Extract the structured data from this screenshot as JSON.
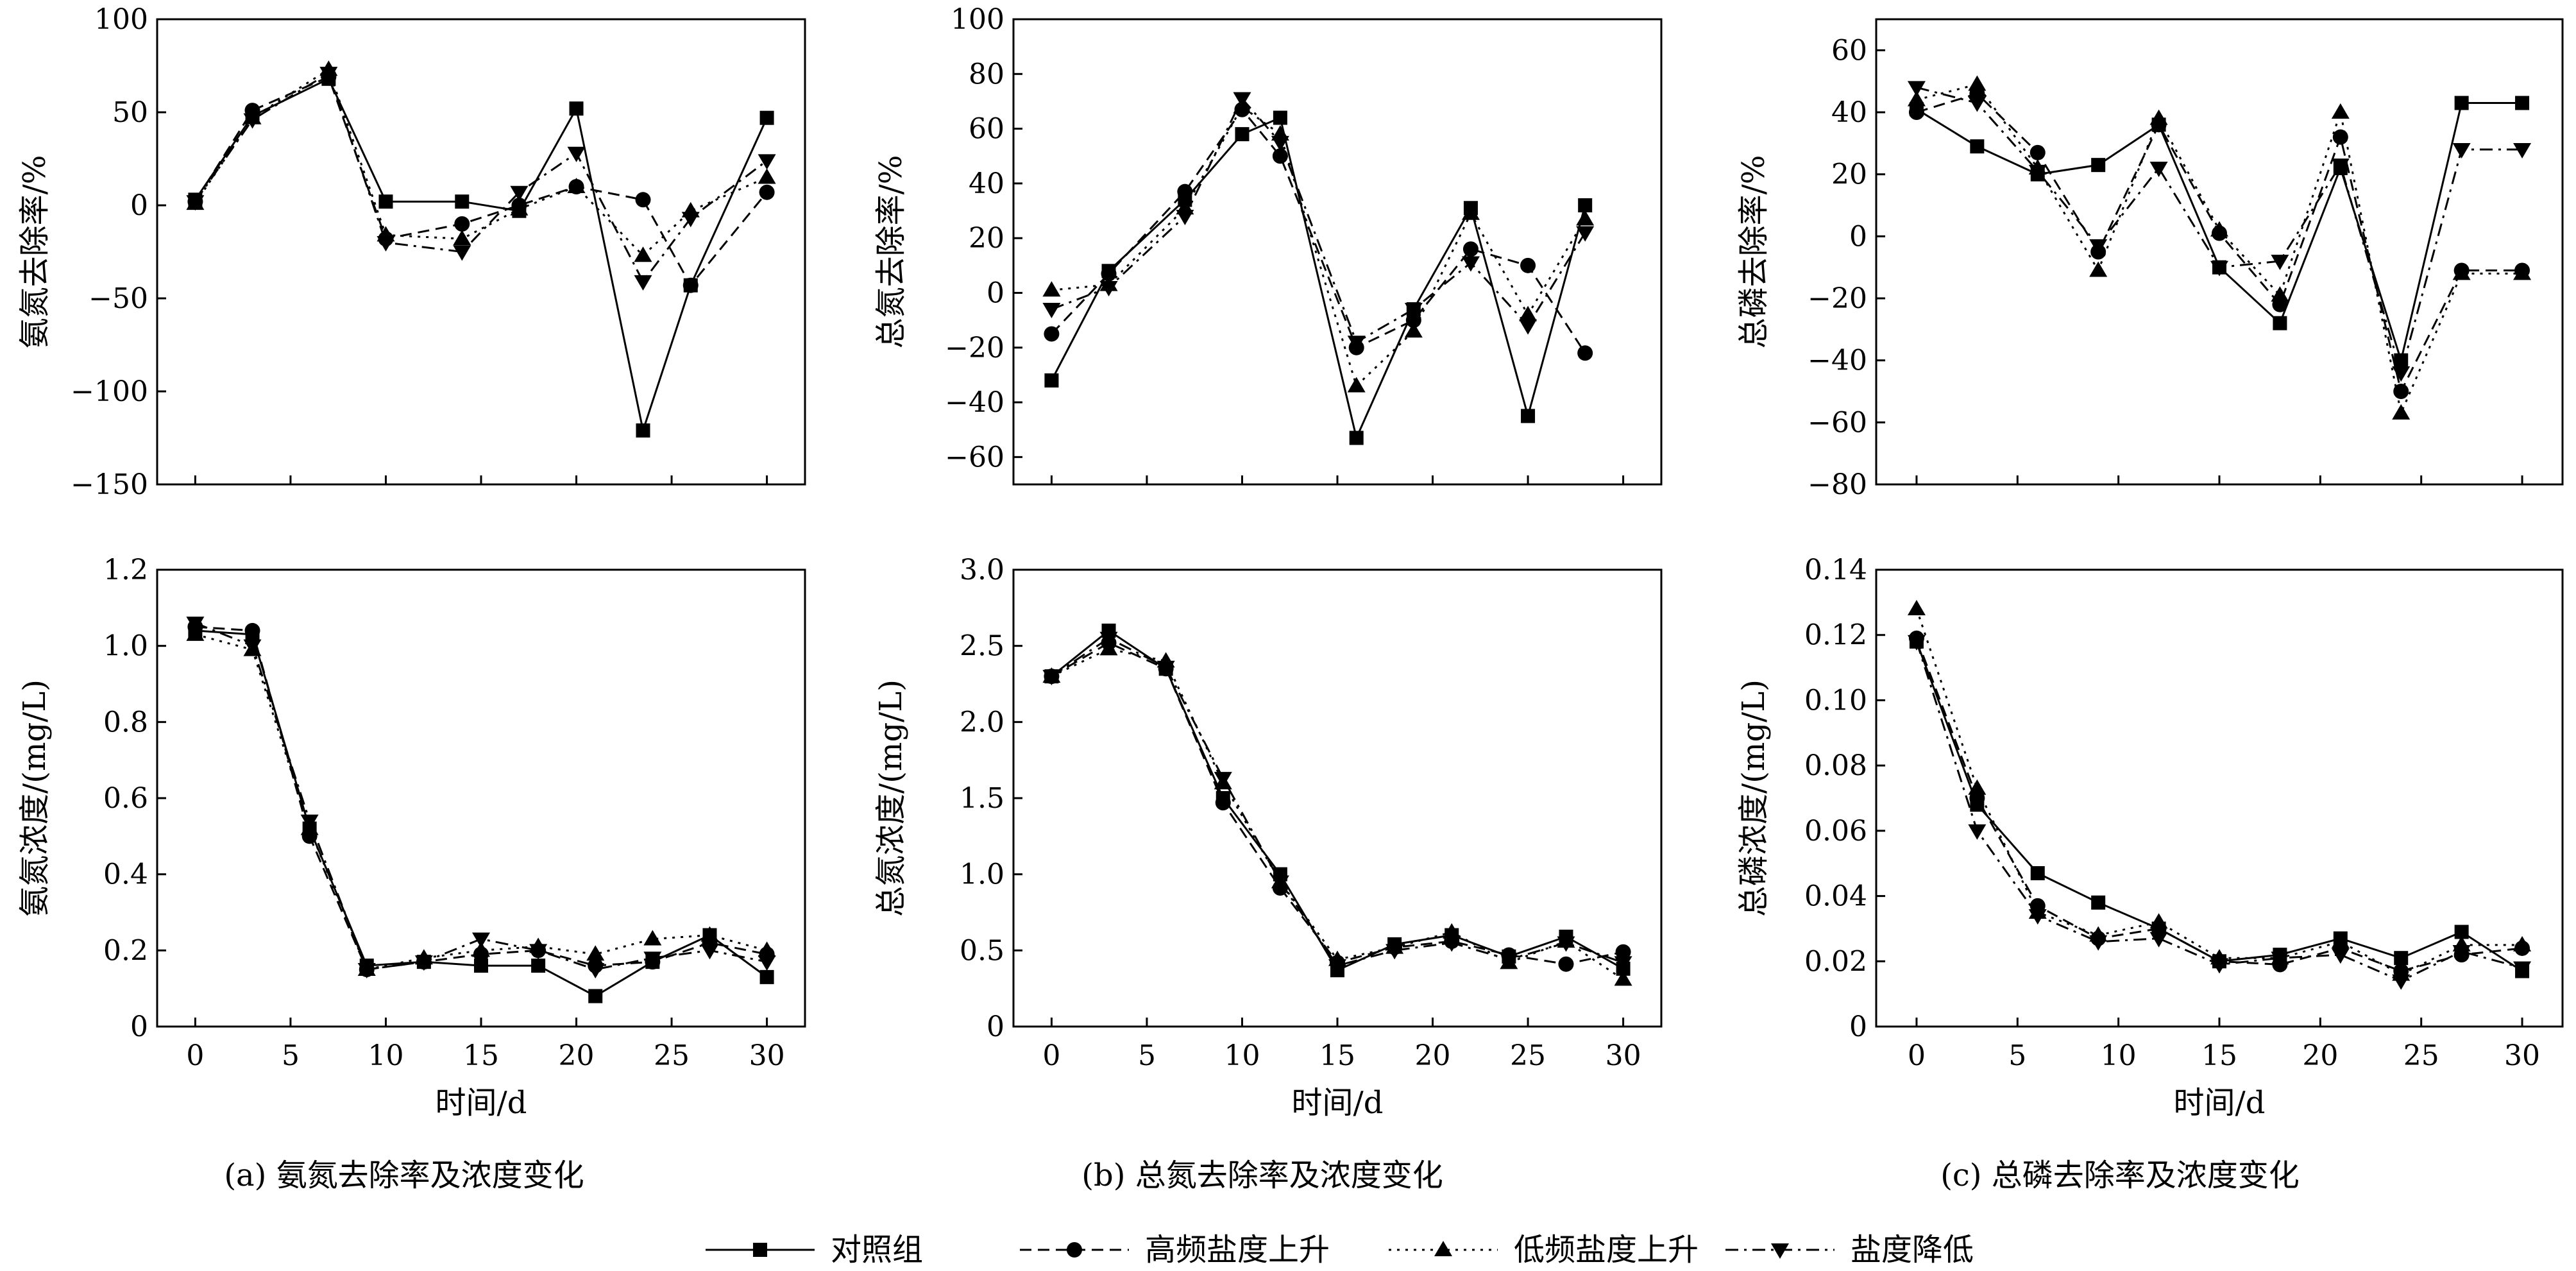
{
  "chart_data": [
    {
      "id": "a-top",
      "type": "line",
      "ylabel": "氨氮去除率/%",
      "xlim": [
        -2,
        32
      ],
      "ylim": [
        -150,
        100
      ],
      "xticks": [
        "0",
        "5",
        "10",
        "15",
        "20",
        "25",
        "30"
      ],
      "yticks": [
        "−150",
        "−100",
        "−50",
        "0",
        "50",
        "100"
      ],
      "show_xticklabels": false,
      "series": [
        {
          "name": "对照组",
          "x": [
            0,
            3,
            7,
            10,
            14,
            17,
            20,
            23.5,
            26,
            30
          ],
          "y": [
            3,
            48,
            68,
            2,
            2,
            -3,
            52,
            -121,
            -43,
            47
          ]
        },
        {
          "name": "高频盐度上升",
          "x": [
            0,
            3,
            7,
            10,
            14,
            17,
            20,
            23.5,
            26,
            30
          ],
          "y": [
            2,
            51,
            69,
            -18,
            -10,
            0,
            10,
            3,
            -43,
            7
          ]
        },
        {
          "name": "低频盐度上升",
          "x": [
            0,
            3,
            7,
            10,
            14,
            17,
            20,
            23.5,
            26,
            30
          ],
          "y": [
            1,
            47,
            73,
            -16,
            -18,
            -2,
            10,
            -27,
            -3,
            15
          ]
        },
        {
          "name": "盐度降低",
          "x": [
            0,
            3,
            7,
            10,
            14,
            17,
            20,
            23.5,
            26,
            30
          ],
          "y": [
            2,
            46,
            71,
            -20,
            -25,
            7,
            28,
            -41,
            -7,
            24
          ]
        }
      ]
    },
    {
      "id": "b-top",
      "type": "line",
      "ylabel": "总氮去除率/%",
      "xlim": [
        -2,
        32
      ],
      "ylim": [
        -70,
        100
      ],
      "xticks": [
        "0",
        "5",
        "10",
        "15",
        "20",
        "25",
        "30"
      ],
      "yticks": [
        "−60",
        "−40",
        "−20",
        "0",
        "20",
        "40",
        "60",
        "80",
        "100"
      ],
      "show_xticklabels": false,
      "series": [
        {
          "name": "对照组",
          "x": [
            0,
            3,
            7,
            10,
            12,
            16,
            19,
            22,
            25,
            28
          ],
          "y": [
            -32,
            8,
            34,
            58,
            64,
            -53,
            -6,
            31,
            -45,
            32
          ]
        },
        {
          "name": "高频盐度上升",
          "x": [
            0,
            3,
            7,
            10,
            12,
            16,
            19,
            22,
            25,
            28
          ],
          "y": [
            -15,
            7,
            37,
            67,
            50,
            -20,
            -10,
            16,
            10,
            -22
          ]
        },
        {
          "name": "低频盐度上升",
          "x": [
            0,
            3,
            7,
            10,
            12,
            16,
            19,
            22,
            25,
            28
          ],
          "y": [
            1,
            3,
            31,
            68,
            58,
            -34,
            -14,
            29,
            -8,
            27
          ]
        },
        {
          "name": "盐度降低",
          "x": [
            0,
            3,
            7,
            10,
            12,
            16,
            19,
            22,
            25,
            28
          ],
          "y": [
            -6,
            2,
            28,
            71,
            55,
            -18,
            -6,
            11,
            -12,
            22
          ]
        }
      ]
    },
    {
      "id": "c-top",
      "type": "line",
      "ylabel": "总磷去除率/%",
      "xlim": [
        -2,
        32
      ],
      "ylim": [
        -80,
        70
      ],
      "xticks": [
        "0",
        "5",
        "10",
        "15",
        "20",
        "25",
        "30"
      ],
      "yticks": [
        "−80",
        "−60",
        "−40",
        "−20",
        "0",
        "20",
        "40",
        "60"
      ],
      "show_xticklabels": false,
      "series": [
        {
          "name": "对照组",
          "x": [
            0,
            3,
            6,
            9,
            12,
            15,
            18,
            21,
            24,
            27,
            30
          ],
          "y": [
            41,
            29,
            20,
            23,
            36,
            -10,
            -28,
            22,
            -40,
            43,
            43
          ]
        },
        {
          "name": "高频盐度上升",
          "x": [
            0,
            3,
            6,
            9,
            12,
            15,
            18,
            21,
            24,
            27,
            30
          ],
          "y": [
            40,
            46,
            27,
            -5,
            36,
            1,
            -22,
            32,
            -50,
            -11,
            -11
          ]
        },
        {
          "name": "低频盐度上升",
          "x": [
            0,
            3,
            6,
            9,
            12,
            15,
            18,
            21,
            24,
            27,
            30
          ],
          "y": [
            44,
            49,
            22,
            -11,
            38,
            2,
            -19,
            40,
            -57,
            -12,
            -12
          ]
        },
        {
          "name": "盐度降低",
          "x": [
            0,
            3,
            6,
            9,
            12,
            15,
            18,
            21,
            24,
            27,
            30
          ],
          "y": [
            48,
            43,
            21,
            -3,
            22,
            -10,
            -8,
            23,
            -44,
            28,
            28
          ]
        }
      ]
    },
    {
      "id": "a-bottom",
      "type": "line",
      "ylabel": "氨氮浓度/(mg/L)",
      "xlabel": "时间/d",
      "xlim": [
        -2,
        32
      ],
      "ylim": [
        0,
        1.2
      ],
      "xticks": [
        "0",
        "5",
        "10",
        "15",
        "20",
        "25",
        "30"
      ],
      "yticks": [
        "0",
        "0.2",
        "0.4",
        "0.6",
        "0.8",
        "1.0",
        "1.2"
      ],
      "show_xticklabels": true,
      "series": [
        {
          "name": "对照组",
          "x": [
            0,
            3,
            6,
            9,
            12,
            15,
            18,
            21,
            24,
            27,
            30
          ],
          "y": [
            1.04,
            1.03,
            0.52,
            0.16,
            0.17,
            0.16,
            0.16,
            0.08,
            0.17,
            0.24,
            0.13
          ]
        },
        {
          "name": "高频盐度上升",
          "x": [
            0,
            3,
            6,
            9,
            12,
            15,
            18,
            21,
            24,
            27,
            30
          ],
          "y": [
            1.05,
            1.04,
            0.5,
            0.15,
            0.17,
            0.19,
            0.2,
            0.16,
            0.17,
            0.22,
            0.19
          ]
        },
        {
          "name": "低频盐度上升",
          "x": [
            0,
            3,
            6,
            9,
            12,
            15,
            18,
            21,
            24,
            27,
            30
          ],
          "y": [
            1.03,
            0.99,
            0.52,
            0.15,
            0.18,
            0.2,
            0.21,
            0.19,
            0.23,
            0.24,
            0.2
          ]
        },
        {
          "name": "盐度降低",
          "x": [
            0,
            3,
            6,
            9,
            12,
            15,
            18,
            21,
            24,
            27,
            30
          ],
          "y": [
            1.06,
            1.0,
            0.54,
            0.15,
            0.17,
            0.23,
            0.2,
            0.15,
            0.18,
            0.2,
            0.17
          ]
        }
      ]
    },
    {
      "id": "b-bottom",
      "type": "line",
      "ylabel": "总氮浓度/(mg/L)",
      "xlabel": "时间/d",
      "xlim": [
        -2,
        32
      ],
      "ylim": [
        0,
        3.0
      ],
      "xticks": [
        "0",
        "5",
        "10",
        "15",
        "20",
        "25",
        "30"
      ],
      "yticks": [
        "0",
        "0.5",
        "1.0",
        "1.5",
        "2.0",
        "2.5",
        "3.0"
      ],
      "show_xticklabels": true,
      "series": [
        {
          "name": "对照组",
          "x": [
            0,
            3,
            6,
            9,
            12,
            15,
            18,
            21,
            24,
            27,
            30
          ],
          "y": [
            2.3,
            2.6,
            2.35,
            1.5,
            1.0,
            0.37,
            0.54,
            0.6,
            0.46,
            0.59,
            0.38
          ]
        },
        {
          "name": "高频盐度上升",
          "x": [
            0,
            3,
            6,
            9,
            12,
            15,
            18,
            21,
            24,
            27,
            30
          ],
          "y": [
            2.3,
            2.52,
            2.35,
            1.47,
            0.91,
            0.42,
            0.52,
            0.56,
            0.47,
            0.41,
            0.49
          ]
        },
        {
          "name": "低频盐度上升",
          "x": [
            0,
            3,
            6,
            9,
            12,
            15,
            18,
            21,
            24,
            27,
            30
          ],
          "y": [
            2.3,
            2.48,
            2.4,
            1.6,
            0.95,
            0.44,
            0.52,
            0.62,
            0.42,
            0.56,
            0.31
          ]
        },
        {
          "name": "盐度降低",
          "x": [
            0,
            3,
            6,
            9,
            12,
            15,
            18,
            21,
            24,
            27,
            30
          ],
          "y": [
            2.3,
            2.55,
            2.36,
            1.63,
            0.95,
            0.4,
            0.5,
            0.55,
            0.44,
            0.55,
            0.42
          ]
        }
      ]
    },
    {
      "id": "c-bottom",
      "type": "line",
      "ylabel": "总磷浓度/(mg/L)",
      "xlabel": "时间/d",
      "xlim": [
        -2,
        32
      ],
      "ylim": [
        0,
        0.14
      ],
      "xticks": [
        "0",
        "5",
        "10",
        "15",
        "20",
        "25",
        "30"
      ],
      "yticks": [
        "0",
        "0.02",
        "0.04",
        "0.06",
        "0.08",
        "0.10",
        "0.12",
        "0.14"
      ],
      "show_xticklabels": true,
      "series": [
        {
          "name": "对照组",
          "x": [
            0,
            3,
            6,
            9,
            12,
            15,
            18,
            21,
            24,
            27,
            30
          ],
          "y": [
            0.118,
            0.068,
            0.047,
            0.038,
            0.03,
            0.02,
            0.022,
            0.027,
            0.021,
            0.029,
            0.017
          ]
        },
        {
          "name": "高频盐度上升",
          "x": [
            0,
            3,
            6,
            9,
            12,
            15,
            18,
            21,
            24,
            27,
            30
          ],
          "y": [
            0.119,
            0.07,
            0.037,
            0.027,
            0.03,
            0.02,
            0.019,
            0.024,
            0.017,
            0.022,
            0.024
          ]
        },
        {
          "name": "低频盐度上升",
          "x": [
            0,
            3,
            6,
            9,
            12,
            15,
            18,
            21,
            24,
            27,
            30
          ],
          "y": [
            0.128,
            0.073,
            0.035,
            0.028,
            0.032,
            0.021,
            0.021,
            0.026,
            0.016,
            0.025,
            0.025
          ]
        },
        {
          "name": "盐度降低",
          "x": [
            0,
            3,
            6,
            9,
            12,
            15,
            18,
            21,
            24,
            27,
            30
          ],
          "y": [
            0.118,
            0.06,
            0.034,
            0.026,
            0.027,
            0.019,
            0.021,
            0.022,
            0.014,
            0.023,
            0.018
          ]
        }
      ]
    }
  ],
  "captions": [
    "(a) 氨氮去除率及浓度变化",
    "(b) 总氮去除率及浓度变化",
    "(c) 总磷去除率及浓度变化"
  ],
  "legend": [
    {
      "label": "对照组",
      "marker": "square",
      "dash": "solid"
    },
    {
      "label": "高频盐度上升",
      "marker": "circle",
      "dash": "dashed"
    },
    {
      "label": "低频盐度上升",
      "marker": "triangle-up",
      "dash": "dotted"
    },
    {
      "label": "盐度降低",
      "marker": "triangle-down",
      "dash": "dash-dot"
    }
  ]
}
